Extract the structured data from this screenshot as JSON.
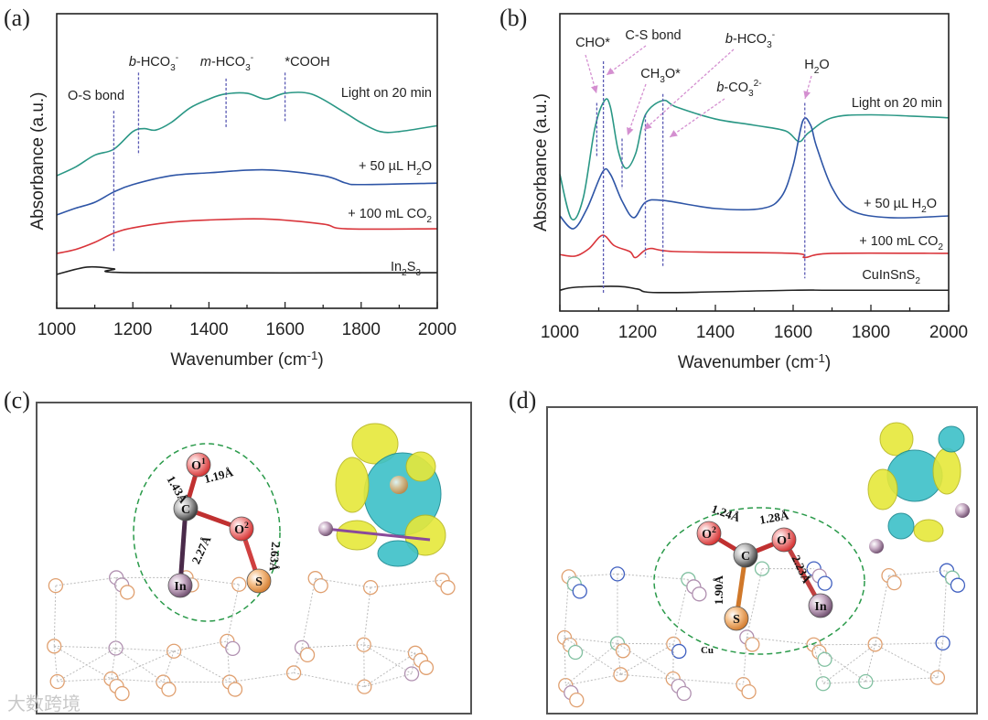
{
  "panels": {
    "a": "(a)",
    "b": "(b)",
    "c": "(c)",
    "d": "(d)"
  },
  "watermark": "大数跨境",
  "colors": {
    "light": "#2a9785",
    "h2o": "#2e55a6",
    "co2": "#d9343a",
    "base": "#222222",
    "marker": "#5a5ab4",
    "arrow": "#d48fd0"
  },
  "chart_data": [
    {
      "type": "line",
      "panel": "(a)",
      "xlabel": "Wavenumber (cm^{-1})",
      "ylabel": "Absorbance (a.u.)",
      "xlim": [
        1000,
        2000
      ],
      "ylim": [
        0,
        100
      ],
      "xticks": [
        1000,
        1200,
        1400,
        1600,
        1800,
        2000
      ],
      "series": [
        {
          "name": "Light on 20 min",
          "color_key": "light",
          "x": [
            1000,
            1050,
            1100,
            1150,
            1200,
            1230,
            1260,
            1300,
            1350,
            1400,
            1440,
            1500,
            1550,
            1600,
            1670,
            1750,
            1800,
            1850,
            1900,
            2000
          ],
          "y": [
            45,
            48,
            52,
            54,
            60,
            61,
            60.5,
            63,
            68,
            71,
            72.7,
            73,
            71,
            73,
            72.7,
            67,
            63,
            60,
            60,
            62
          ]
        },
        {
          "name": "+ 50 µL H_2O",
          "color_key": "h2o",
          "x": [
            1000,
            1050,
            1100,
            1150,
            1200,
            1300,
            1400,
            1550,
            1700,
            1760,
            1800,
            2000
          ],
          "y": [
            31.7,
            34,
            36,
            39.5,
            42,
            45,
            46,
            47,
            45,
            42.5,
            42,
            42.5
          ]
        },
        {
          "name": "+ 100 mL CO_2",
          "color_key": "co2",
          "x": [
            1000,
            1050,
            1100,
            1150,
            1200,
            1300,
            1400,
            1550,
            1700,
            1760,
            2000
          ],
          "y": [
            18.6,
            20,
            22.4,
            25.5,
            27.3,
            29.2,
            30,
            30.3,
            28.6,
            27,
            27
          ]
        },
        {
          "name": "In_2S_3",
          "color_key": "base",
          "x": [
            1000,
            1080,
            1150,
            1200,
            2000
          ],
          "y": [
            11.5,
            14,
            13.4,
            12.1,
            12.1
          ]
        }
      ],
      "markers": [
        {
          "label": "O-S bond",
          "x": 1150,
          "y": [
            19,
            67
          ]
        },
        {
          "label": "~b~-HCO_3^{-}",
          "x": 1215,
          "y": [
            52,
            80
          ]
        },
        {
          "label": "~m~-HCO_3^{-}",
          "x": 1445,
          "y": [
            61,
            78
          ]
        },
        {
          "label": "*COOH",
          "x": 1600,
          "y": [
            63,
            80
          ]
        }
      ]
    },
    {
      "type": "line",
      "panel": "(b)",
      "xlabel": "Wavenumber (cm^{-1})",
      "ylabel": "Absorbance (a.u.)",
      "xlim": [
        1000,
        2000
      ],
      "ylim": [
        0,
        100
      ],
      "xticks": [
        1000,
        1200,
        1400,
        1600,
        1800,
        2000
      ],
      "series": [
        {
          "name": "Light on 20 min",
          "color_key": "light",
          "x": [
            1000,
            1030,
            1060,
            1090,
            1115,
            1130,
            1150,
            1170,
            1195,
            1220,
            1265,
            1300,
            1400,
            1500,
            1580,
            1615,
            1640,
            1700,
            1800,
            2000
          ],
          "y": [
            46,
            31,
            38,
            61.5,
            70.8,
            68.6,
            54,
            48,
            53,
            66,
            70.8,
            68.6,
            64.6,
            62.5,
            60.6,
            57,
            60,
            65,
            66,
            65
          ]
        },
        {
          "name": "+ 50 µL H_2O",
          "color_key": "h2o",
          "x": [
            1000,
            1035,
            1070,
            1110,
            1130,
            1160,
            1190,
            1220,
            1265,
            1400,
            1520,
            1570,
            1600,
            1625,
            1645,
            1660,
            1700,
            1750,
            1850,
            2000
          ],
          "y": [
            32,
            27.7,
            34.5,
            46.8,
            46,
            37,
            31.4,
            36.6,
            37.2,
            34.5,
            34.5,
            38.5,
            49,
            64,
            62.5,
            55.4,
            41.5,
            33.8,
            31.4,
            32
          ]
        },
        {
          "name": "+ 100 mL CO_2",
          "color_key": "co2",
          "x": [
            1000,
            1040,
            1075,
            1110,
            1140,
            1180,
            1195,
            1230,
            1300,
            1600,
            1630,
            1700,
            2000
          ],
          "y": [
            19,
            18.5,
            21,
            25.5,
            22,
            20,
            18,
            21,
            20,
            19.4,
            18,
            19.4,
            19.4
          ]
        },
        {
          "name": "CuInSnS_2",
          "color_key": "base",
          "x": [
            1000,
            1040,
            1150,
            1200,
            1260,
            1600,
            1700,
            2000
          ],
          "y": [
            7,
            8,
            8.3,
            7.4,
            6.2,
            7,
            7,
            7
          ]
        }
      ],
      "markers": [
        {
          "label": "CHO*",
          "x": 1095,
          "y": [
            52,
            70
          ]
        },
        {
          "label": "C-S bond",
          "x": 1112,
          "y": [
            6,
            84
          ]
        },
        {
          "label": "CH_3O*",
          "x": 1160,
          "y": [
            41,
            58
          ]
        },
        {
          "label": "~b~-HCO_3^{-}",
          "x": 1220,
          "y": [
            18,
            66
          ]
        },
        {
          "label": "~b~-CO_3^{2-}",
          "x": 1265,
          "y": [
            15,
            73
          ]
        },
        {
          "label": "H_2O",
          "x": 1630,
          "y": [
            11,
            70
          ]
        }
      ]
    }
  ],
  "structures": {
    "c": {
      "atoms": [
        {
          "label": "O^{1}",
          "element": "O"
        },
        {
          "label": "C",
          "element": "C"
        },
        {
          "label": "O^{2}",
          "element": "O"
        },
        {
          "label": "In",
          "element": "In"
        },
        {
          "label": "S",
          "element": "S"
        }
      ],
      "bonds": [
        "1.43Å",
        "1.19Å",
        "2.27Å",
        "2.63Å"
      ]
    },
    "d": {
      "atoms": [
        {
          "label": "O^{2}",
          "element": "O"
        },
        {
          "label": "C",
          "element": "C"
        },
        {
          "label": "O^{1}",
          "element": "O"
        },
        {
          "label": "S",
          "element": "S"
        },
        {
          "label": "In",
          "element": "In"
        }
      ],
      "bonds": [
        "1.24Å",
        "1.28Å",
        "1.90Å",
        "2.23Å"
      ],
      "extra_label": "Cu"
    }
  }
}
